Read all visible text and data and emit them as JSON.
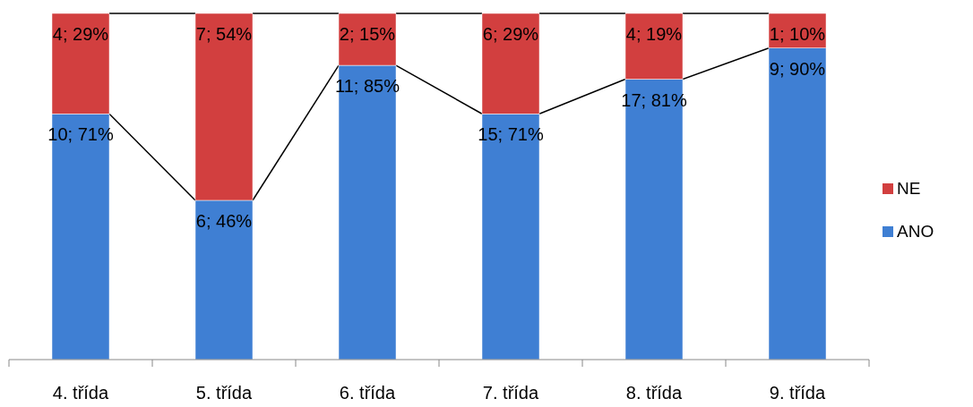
{
  "chart_data": {
    "type": "bar",
    "stacked": true,
    "categories": [
      "4. třída",
      "5. třída",
      "6. třída",
      "7. třída",
      "8. třída",
      "9. třída"
    ],
    "series": [
      {
        "name": "ANO",
        "color": "#3f7fd3",
        "values": [
          71,
          46,
          85,
          71,
          81,
          90
        ],
        "value_labels": [
          "10; 71%",
          "6; 46%",
          "11; 85%",
          "15; 71%",
          "17; 81%",
          "9; 90%"
        ]
      },
      {
        "name": "NE",
        "color": "#d23f3f",
        "values": [
          29,
          54,
          15,
          29,
          19,
          10
        ],
        "value_labels": [
          "4; 29%",
          "7; 54%",
          "2; 15%",
          "6; 29%",
          "4; 19%",
          "1; 10%"
        ]
      }
    ],
    "legend": "right"
  }
}
